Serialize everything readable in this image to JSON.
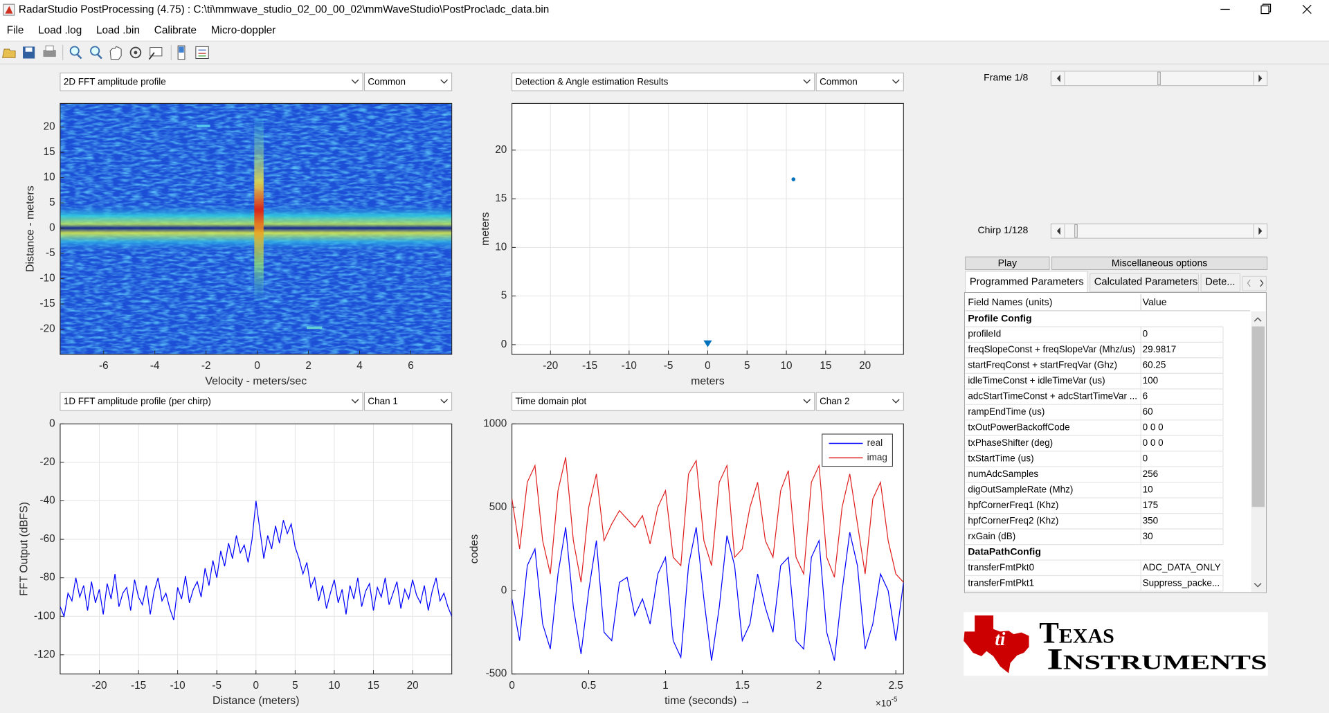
{
  "window": {
    "title": "RadarStudio PostProcessing (4.75)  : C:\\ti\\mmwave_studio_02_00_00_02\\mmWaveStudio\\PostProc\\adc_data.bin"
  },
  "menu": [
    "File",
    "Load .log",
    "Load .bin",
    "Calibrate",
    "Micro-doppler"
  ],
  "plots": [
    {
      "type": "heatmap",
      "dropdown": "2D FFT amplitude profile",
      "selector": "Common",
      "xlabel": "Velocity - meters/sec",
      "ylabel": "Distance - meters",
      "xlim": [
        -7.7,
        7.6
      ],
      "ylim": [
        -25,
        24.7
      ],
      "xticks": [
        -6,
        -4,
        -2,
        0,
        2,
        4,
        6
      ],
      "yticks": [
        -20,
        -15,
        -10,
        -5,
        0,
        5,
        10,
        15,
        20
      ]
    },
    {
      "type": "scatter",
      "dropdown": "Detection & Angle estimation Results",
      "selector": "Common",
      "xlabel": "meters",
      "ylabel": "meters",
      "xlim": [
        -24.9,
        24.9
      ],
      "ylim": [
        -1,
        24.8
      ],
      "xticks": [
        -20,
        -15,
        -10,
        -5,
        0,
        5,
        10,
        15,
        20
      ],
      "yticks": [
        0,
        5,
        10,
        15,
        20
      ],
      "grid": true,
      "series": [
        {
          "marker": "triangle",
          "color": "#0072bd",
          "x": [
            0
          ],
          "values": [
            0
          ]
        },
        {
          "marker": "dot",
          "color": "#0072bd",
          "x": [
            10.9
          ],
          "values": [
            17.0
          ]
        }
      ]
    },
    {
      "type": "line",
      "dropdown": "1D FFT amplitude profile (per chirp)",
      "selector": "Chan 1",
      "xlabel": "Distance (meters)",
      "ylabel": "FFT Output (dBFS)",
      "xlim": [
        -25,
        25
      ],
      "ylim": [
        -130,
        0
      ],
      "xticks": [
        -20,
        -15,
        -10,
        -5,
        0,
        5,
        10,
        15,
        20
      ],
      "yticks": [
        -120,
        -100,
        -80,
        -60,
        -40,
        -20,
        0
      ],
      "grid": true,
      "series": [
        {
          "color": "#0000ff",
          "x": [
            -25,
            -24.5,
            -24,
            -23.5,
            -23,
            -22.5,
            -22,
            -21.5,
            -21,
            -20.5,
            -20,
            -19.5,
            -19,
            -18.5,
            -18,
            -17.5,
            -17,
            -16.5,
            -16,
            -15.5,
            -15,
            -14.5,
            -14,
            -13.5,
            -13,
            -12.5,
            -12,
            -11.5,
            -11,
            -10.5,
            -10,
            -9.5,
            -9,
            -8.5,
            -8,
            -7.5,
            -7,
            -6.5,
            -6,
            -5.5,
            -5,
            -4.5,
            -4,
            -3.5,
            -3,
            -2.5,
            -2,
            -1.5,
            -1,
            -0.5,
            0,
            0.5,
            1,
            1.5,
            2,
            2.5,
            3,
            3.5,
            4,
            4.5,
            5,
            5.5,
            6,
            6.5,
            7,
            7.5,
            8,
            8.5,
            9,
            9.5,
            10,
            10.5,
            11,
            11.5,
            12,
            12.5,
            13,
            13.5,
            14,
            14.5,
            15,
            15.5,
            16,
            16.5,
            17,
            17.5,
            18,
            18.5,
            19,
            19.5,
            20,
            20.5,
            21,
            21.5,
            22,
            22.5,
            23,
            23.5,
            24,
            24.5,
            25
          ],
          "values": [
            -95,
            -100,
            -88,
            -92,
            -80,
            -90,
            -84,
            -97,
            -82,
            -93,
            -86,
            -99,
            -83,
            -91,
            -78,
            -95,
            -88,
            -85,
            -97,
            -81,
            -90,
            -94,
            -84,
            -99,
            -87,
            -80,
            -92,
            -88,
            -96,
            -102,
            -85,
            -91,
            -79,
            -93,
            -86,
            -82,
            -90,
            -75,
            -84,
            -71,
            -80,
            -66,
            -74,
            -62,
            -70,
            -58,
            -67,
            -63,
            -72,
            -60,
            -40,
            -55,
            -70,
            -58,
            -65,
            -53,
            -62,
            -50,
            -57,
            -52,
            -64,
            -70,
            -78,
            -72,
            -85,
            -80,
            -92,
            -84,
            -96,
            -88,
            -81,
            -93,
            -86,
            -99,
            -84,
            -91,
            -80,
            -95,
            -87,
            -83,
            -97,
            -85,
            -90,
            -80,
            -94,
            -88,
            -82,
            -96,
            -86,
            -91,
            -81,
            -89,
            -93,
            -84,
            -97,
            -87,
            -80,
            -92,
            -88,
            -95,
            -100
          ]
        }
      ]
    },
    {
      "type": "line",
      "dropdown": "Time domain plot",
      "selector": "Chan 2",
      "xlabel": "time  (seconds) →",
      "ylabel": "codes",
      "x_scale": {
        "base": "×10",
        "exponent": "-5"
      },
      "xlim": [
        0,
        2.55
      ],
      "ylim": [
        -500,
        1000
      ],
      "xticks": [
        0,
        0.5,
        1,
        1.5,
        2,
        2.5
      ],
      "yticks": [
        -500,
        0,
        500,
        1000
      ],
      "grid": false,
      "legend": "top-right",
      "series": [
        {
          "name": "real",
          "color": "#0000ff",
          "x": [
            0,
            0.05,
            0.1,
            0.15,
            0.2,
            0.25,
            0.3,
            0.35,
            0.4,
            0.45,
            0.5,
            0.55,
            0.6,
            0.65,
            0.7,
            0.75,
            0.8,
            0.85,
            0.9,
            0.95,
            1,
            1.05,
            1.1,
            1.15,
            1.2,
            1.25,
            1.3,
            1.35,
            1.4,
            1.45,
            1.5,
            1.55,
            1.6,
            1.65,
            1.7,
            1.75,
            1.8,
            1.85,
            1.9,
            1.95,
            2,
            2.05,
            2.1,
            2.15,
            2.2,
            2.25,
            2.3,
            2.35,
            2.4,
            2.45,
            2.5,
            2.55
          ],
          "values": [
            -50,
            -300,
            150,
            250,
            -200,
            -350,
            100,
            380,
            -100,
            -380,
            0,
            300,
            -250,
            -300,
            50,
            80,
            -150,
            -50,
            -200,
            100,
            200,
            -300,
            -400,
            150,
            380,
            -50,
            -420,
            -100,
            330,
            150,
            -300,
            -200,
            100,
            -100,
            -250,
            150,
            200,
            -300,
            -350,
            200,
            300,
            -250,
            -420,
            0,
            350,
            150,
            -350,
            -200,
            100,
            0,
            -300,
            50
          ]
        },
        {
          "name": "imag",
          "color": "#e02020",
          "x": [
            0,
            0.05,
            0.1,
            0.15,
            0.2,
            0.25,
            0.3,
            0.35,
            0.4,
            0.45,
            0.5,
            0.55,
            0.6,
            0.65,
            0.7,
            0.75,
            0.8,
            0.85,
            0.9,
            0.95,
            1,
            1.05,
            1.1,
            1.15,
            1.2,
            1.25,
            1.3,
            1.35,
            1.4,
            1.45,
            1.5,
            1.55,
            1.6,
            1.65,
            1.7,
            1.75,
            1.8,
            1.85,
            1.9,
            1.95,
            2,
            2.05,
            2.1,
            2.15,
            2.2,
            2.25,
            2.3,
            2.35,
            2.4,
            2.45,
            2.5,
            2.55
          ],
          "values": [
            550,
            250,
            650,
            750,
            300,
            100,
            600,
            800,
            300,
            50,
            500,
            700,
            300,
            400,
            480,
            430,
            380,
            450,
            280,
            500,
            600,
            200,
            150,
            700,
            780,
            300,
            150,
            650,
            750,
            200,
            250,
            500,
            650,
            300,
            200,
            600,
            720,
            200,
            100,
            650,
            750,
            200,
            80,
            500,
            700,
            400,
            100,
            550,
            650,
            300,
            100,
            50
          ]
        }
      ]
    }
  ],
  "frame_slider": {
    "label": "Frame 1/8"
  },
  "chirp_slider": {
    "label": "Chirp 1/128"
  },
  "buttons": [
    "Play",
    "Miscellaneous options"
  ],
  "tabs": [
    "Programmed Parameters",
    "Calculated Parameters",
    "Dete..."
  ],
  "table": {
    "header": [
      "Field Names   (units)",
      "Value"
    ],
    "rows": [
      {
        "section": "Profile Config"
      },
      {
        "field": "profileId",
        "value": 0
      },
      {
        "field": "freqSlopeConst + freqSlopeVar (Mhz/us)",
        "value": 29.9817
      },
      {
        "field": "startFreqConst + startFreqVar (Ghz)",
        "value": 60.25
      },
      {
        "field": "idleTimeConst + idleTimeVar (us)",
        "value": 100
      },
      {
        "field": "adcStartTimeConst + adcStartTimeVar ...",
        "value": 6
      },
      {
        "field": "rampEndTime (us)",
        "value": 60
      },
      {
        "field": "txOutPowerBackoffCode",
        "value": "0 0 0"
      },
      {
        "field": "txPhaseShifter (deg)",
        "value": "0 0 0"
      },
      {
        "field": "txStartTime (us)",
        "value": 0
      },
      {
        "field": "numAdcSamples",
        "value": 256
      },
      {
        "field": "digOutSampleRate (Mhz)",
        "value": 10
      },
      {
        "field": "hpfCornerFreq1 (Khz)",
        "value": 175
      },
      {
        "field": "hpfCornerFreq2 (Khz)",
        "value": 350
      },
      {
        "field": "rxGain (dB)",
        "value": 30
      },
      {
        "section": "DataPathConfig"
      },
      {
        "field": "transferFmtPkt0",
        "value": "ADC_DATA_ONLY"
      },
      {
        "field": "transferFmtPkt1",
        "value": "Suppress_packe..."
      }
    ]
  },
  "logo": {
    "line1": "Texas",
    "line2": "Instruments"
  }
}
